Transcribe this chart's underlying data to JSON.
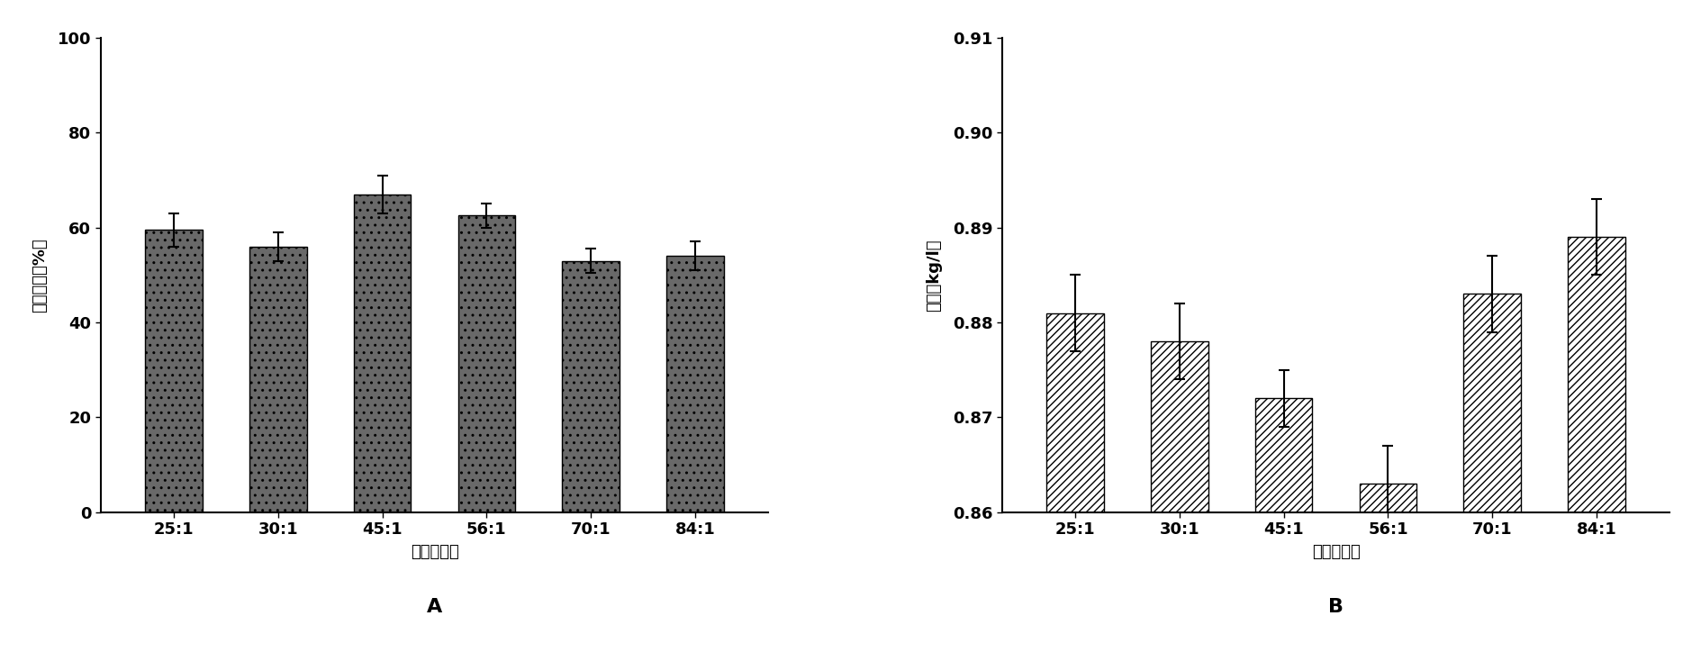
{
  "categories": [
    "25:1",
    "30:1",
    "45:1",
    "56:1",
    "70:1",
    "84:1"
  ],
  "chart_A": {
    "values": [
      59.5,
      56.0,
      67.0,
      62.5,
      53.0,
      54.0
    ],
    "errors": [
      3.5,
      3.0,
      4.0,
      2.5,
      2.5,
      3.0
    ],
    "ylabel": "生物柴油（%）",
    "xlabel": "酔油摩尔比",
    "label_A": "A",
    "ylim": [
      0,
      100
    ],
    "yticks": [
      0,
      20,
      40,
      60,
      80,
      100
    ],
    "bar_color": "#696969",
    "hatch": ".."
  },
  "chart_B": {
    "values": [
      0.881,
      0.878,
      0.872,
      0.863,
      0.883,
      0.889
    ],
    "errors": [
      0.004,
      0.004,
      0.003,
      0.004,
      0.004,
      0.004
    ],
    "ylabel": "密度（kg/l）",
    "xlabel": "酔油摩尔比",
    "label_B": "B",
    "ylim": [
      0.86,
      0.91
    ],
    "yticks": [
      0.86,
      0.87,
      0.88,
      0.89,
      0.9,
      0.91
    ],
    "ytick_labels": [
      "0.86",
      "0.87",
      "0.88",
      "0.89",
      "0.90",
      "0.91"
    ],
    "bar_color": "#ffffff",
    "hatch": "////"
  },
  "background_color": "#ffffff",
  "figsize": [
    18.89,
    7.24
  ],
  "dpi": 100
}
